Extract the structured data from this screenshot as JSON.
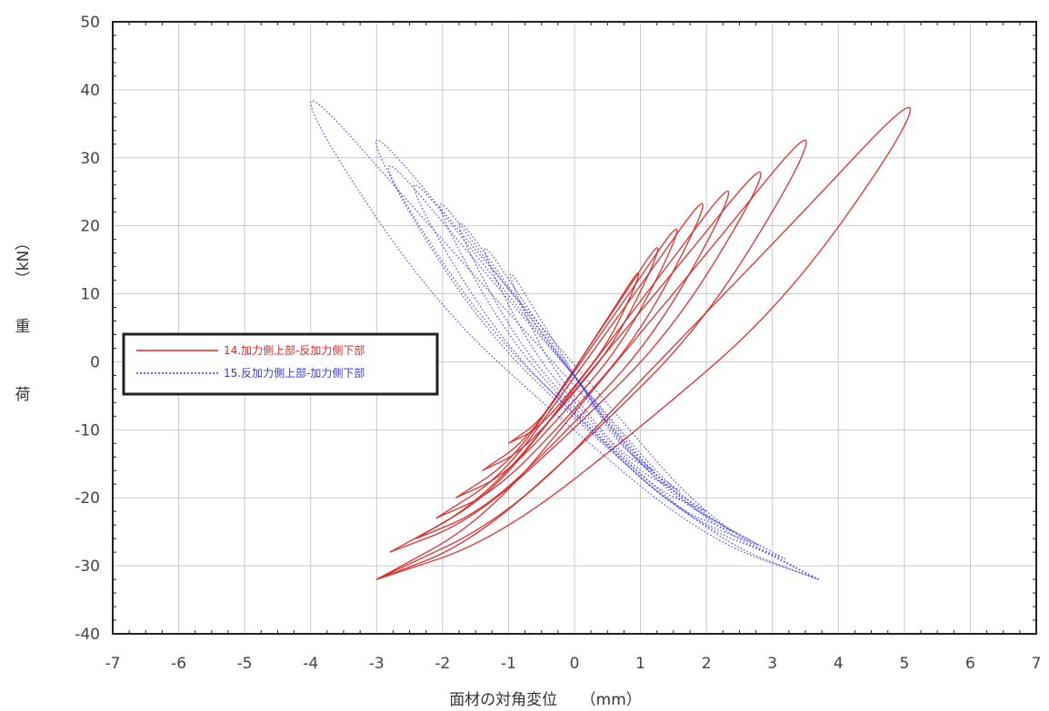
{
  "chart_data": {
    "type": "line",
    "xlabel": "面材の対角変位　　（mm）",
    "ylabel_chars": [
      "荷",
      "重"
    ],
    "ylabel_unit": "（kN）",
    "xlim": [
      -7,
      7
    ],
    "ylim": [
      -40,
      50
    ],
    "xticks": [
      -7,
      -6,
      -5,
      -4,
      -3,
      -2,
      -1,
      0,
      1,
      2,
      3,
      4,
      5,
      6,
      7
    ],
    "yticks": [
      -40,
      -30,
      -20,
      -10,
      0,
      10,
      20,
      30,
      40,
      50
    ],
    "grid": true,
    "legend_position": "middle-left",
    "series": [
      {
        "name": "14.加力側上部-反加力側下部",
        "color": "#d42a2a",
        "style": "solid",
        "loops": [
          {
            "peak": [
              1.0,
              14
            ],
            "trough": [
              -1.0,
              -12
            ]
          },
          {
            "peak": [
              1.3,
              18
            ],
            "trough": [
              -1.4,
              -16
            ]
          },
          {
            "peak": [
              1.6,
              21
            ],
            "trough": [
              -1.8,
              -20
            ]
          },
          {
            "peak": [
              2.0,
              25
            ],
            "trough": [
              -2.1,
              -23
            ]
          },
          {
            "peak": [
              2.4,
              27
            ],
            "trough": [
              -2.4,
              -26
            ]
          },
          {
            "peak": [
              2.9,
              30
            ],
            "trough": [
              -2.8,
              -28
            ]
          },
          {
            "peak": [
              3.6,
              35
            ],
            "trough": [
              -3.0,
              -32
            ]
          },
          {
            "peak": [
              5.2,
              40
            ],
            "trough": [
              -3.0,
              -32
            ]
          }
        ]
      },
      {
        "name": "15.反加力側上部-加力側下部",
        "color": "#3a3ad6",
        "style": "dotted",
        "loops": [
          {
            "peak": [
              -1.0,
              14
            ],
            "trough": [
              1.2,
              -16
            ]
          },
          {
            "peak": [
              -1.4,
              18
            ],
            "trough": [
              1.6,
              -19
            ]
          },
          {
            "peak": [
              -1.8,
              22
            ],
            "trough": [
              2.0,
              -22
            ]
          },
          {
            "peak": [
              -2.1,
              25
            ],
            "trough": [
              2.4,
              -25
            ]
          },
          {
            "peak": [
              -2.5,
              28
            ],
            "trough": [
              2.8,
              -27
            ]
          },
          {
            "peak": [
              -2.9,
              31
            ],
            "trough": [
              3.2,
              -29
            ]
          },
          {
            "peak": [
              -3.1,
              35
            ],
            "trough": [
              3.7,
              -32
            ]
          },
          {
            "peak": [
              -4.1,
              41
            ],
            "trough": [
              3.7,
              -32
            ]
          }
        ]
      }
    ]
  }
}
